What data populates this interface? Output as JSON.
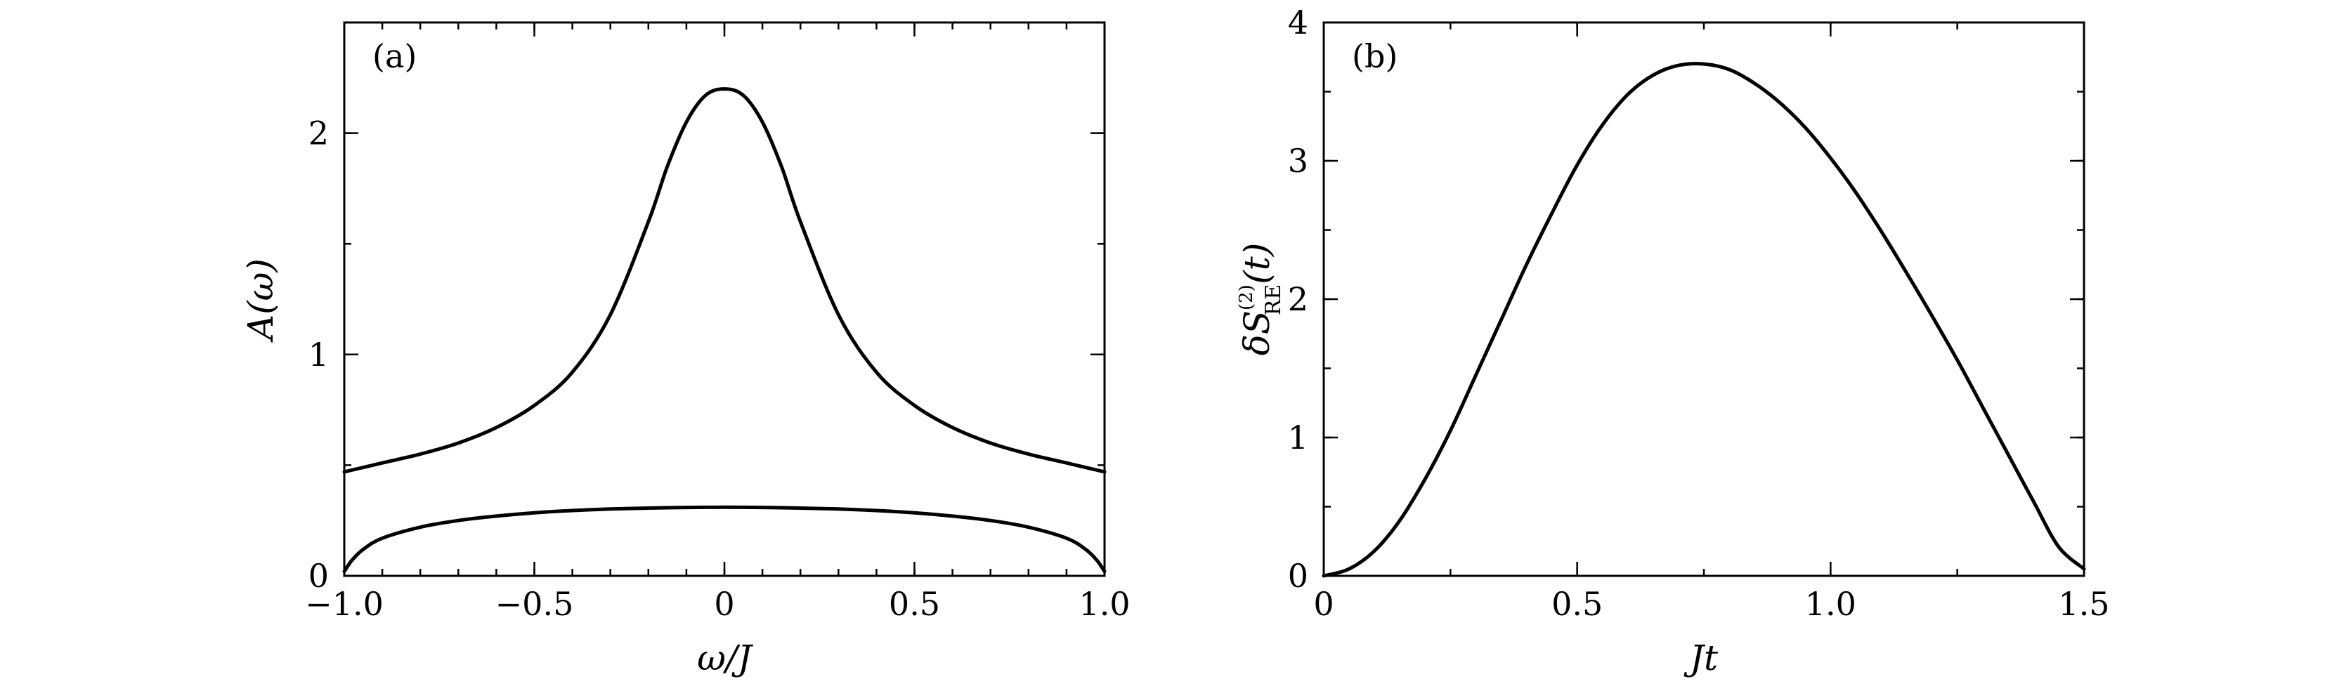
{
  "chart_data": [
    {
      "panel": "(a)",
      "type": "line",
      "xlabel": "ω/J",
      "ylabel": "A(ω)",
      "xlim": [
        -1.0,
        1.0
      ],
      "ylim": [
        0,
        2.5
      ],
      "xticks": [
        -1.0,
        -0.5,
        0,
        0.5,
        1.0
      ],
      "xtick_labels": [
        "−1.0",
        "−0.5",
        "0",
        "0.5",
        "1.0"
      ],
      "yticks": [
        0,
        1,
        2
      ],
      "ytick_labels": [
        "0",
        "1",
        "2"
      ],
      "grid": false,
      "series": [
        {
          "x": [
            -1.0,
            -0.9,
            -0.8,
            -0.7,
            -0.6,
            -0.5,
            -0.4,
            -0.3,
            -0.2,
            -0.15,
            -0.1,
            -0.05,
            0,
            0.05,
            0.1,
            0.15,
            0.2,
            0.3,
            0.4,
            0.5,
            0.6,
            0.7,
            0.8,
            0.9,
            1.0
          ],
          "values": [
            0.47,
            0.51,
            0.55,
            0.6,
            0.67,
            0.77,
            0.92,
            1.18,
            1.6,
            1.85,
            2.05,
            2.17,
            2.2,
            2.17,
            2.05,
            1.85,
            1.6,
            1.18,
            0.92,
            0.77,
            0.67,
            0.6,
            0.55,
            0.51,
            0.47
          ]
        },
        {
          "x": [
            -1.0,
            -0.98,
            -0.95,
            -0.9,
            -0.8,
            -0.7,
            -0.6,
            -0.5,
            -0.4,
            -0.3,
            -0.2,
            -0.1,
            0,
            0.1,
            0.2,
            0.3,
            0.4,
            0.5,
            0.6,
            0.7,
            0.8,
            0.9,
            0.95,
            0.98,
            1.0
          ],
          "values": [
            0.02,
            0.07,
            0.12,
            0.17,
            0.22,
            0.25,
            0.27,
            0.285,
            0.295,
            0.302,
            0.306,
            0.309,
            0.31,
            0.309,
            0.306,
            0.302,
            0.295,
            0.285,
            0.27,
            0.25,
            0.22,
            0.17,
            0.12,
            0.07,
            0.02
          ]
        }
      ]
    },
    {
      "panel": "(b)",
      "type": "line",
      "xlabel": "Jt",
      "ylabel": "δS_RE^(2)(t)",
      "ylabel_main": "δS",
      "ylabel_sup": "(2)",
      "ylabel_sub": "RE",
      "ylabel_tail": "(t)",
      "xlim": [
        0,
        1.5
      ],
      "ylim": [
        0,
        4
      ],
      "xticks": [
        0,
        0.5,
        1.0,
        1.5
      ],
      "xtick_labels": [
        "0",
        "0.5",
        "1.0",
        "1.5"
      ],
      "yticks": [
        0,
        1,
        2,
        3,
        4
      ],
      "ytick_labels": [
        "0",
        "1",
        "2",
        "3",
        "4"
      ],
      "grid": false,
      "series": [
        {
          "x": [
            0,
            0.05,
            0.1,
            0.15,
            0.2,
            0.25,
            0.3,
            0.35,
            0.4,
            0.45,
            0.5,
            0.55,
            0.6,
            0.65,
            0.7,
            0.75,
            0.8,
            0.85,
            0.9,
            0.95,
            1.0,
            1.05,
            1.1,
            1.15,
            1.2,
            1.25,
            1.3,
            1.35,
            1.4,
            1.45,
            1.5
          ],
          "values": [
            0.0,
            0.05,
            0.18,
            0.4,
            0.7,
            1.05,
            1.45,
            1.85,
            2.25,
            2.62,
            2.97,
            3.26,
            3.48,
            3.62,
            3.69,
            3.7,
            3.66,
            3.56,
            3.42,
            3.24,
            3.02,
            2.77,
            2.49,
            2.19,
            1.88,
            1.56,
            1.22,
            0.88,
            0.54,
            0.21,
            0.05
          ]
        }
      ]
    }
  ]
}
